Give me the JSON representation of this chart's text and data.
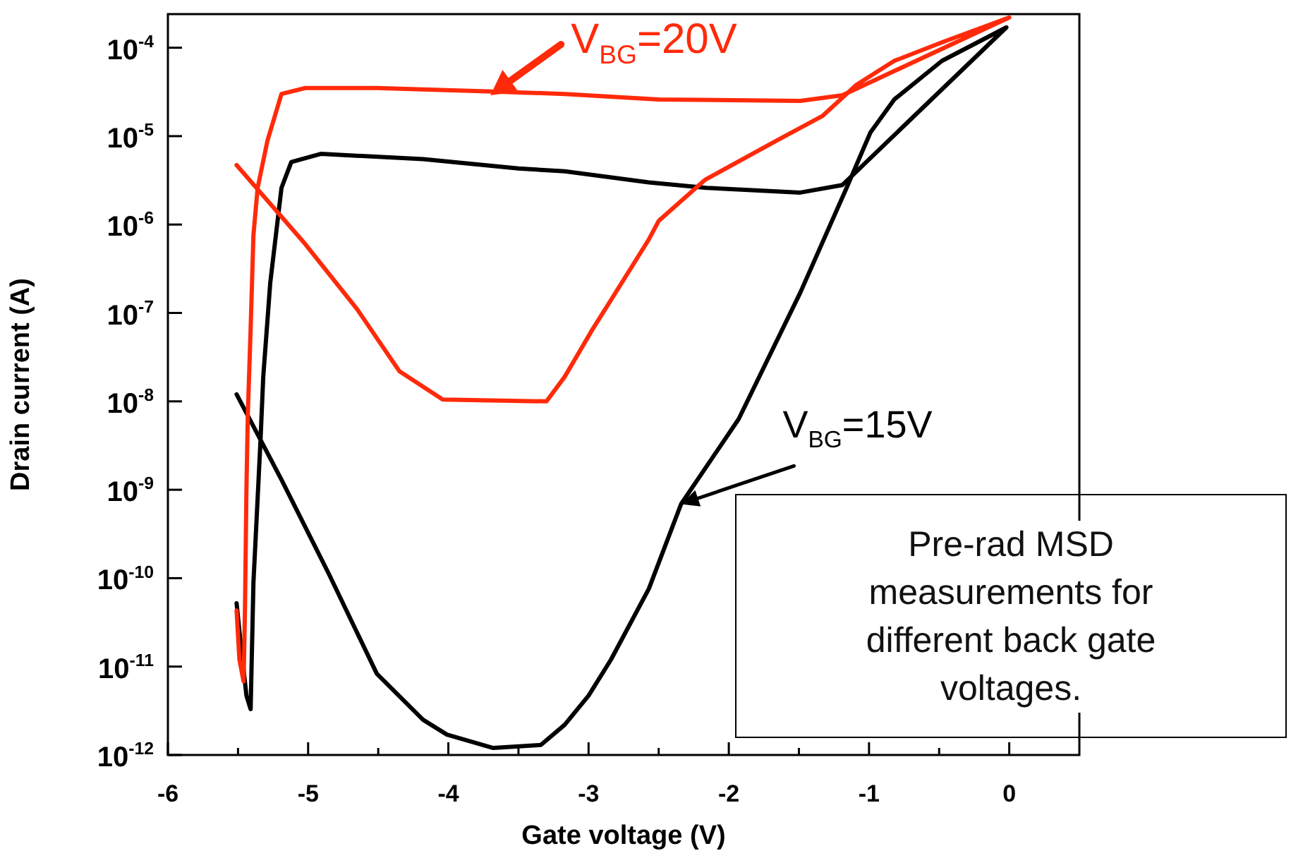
{
  "chart_data": {
    "type": "line",
    "xlabel": "Gate voltage (V)",
    "ylabel": "Drain current (A)",
    "log": "y",
    "grid": false,
    "marker": "none",
    "line_style": "solid",
    "xlim": [
      -6,
      0.5
    ],
    "xticks": [
      -6,
      {
        "value": -5.5,
        "label": null
      },
      -5,
      {
        "value": -4.5,
        "label": null
      },
      -4,
      {
        "value": -3.5,
        "label": null
      },
      -3,
      {
        "value": -2.5,
        "label": null
      },
      -2,
      {
        "value": -1.5,
        "label": null
      },
      -1,
      {
        "value": -0.5,
        "label": null
      },
      0
    ],
    "ylim": [
      1e-12,
      0.00024
    ],
    "yticks": [
      {
        "value": 1e-12,
        "label": "10$^{-12}$"
      },
      {
        "value": 1e-11,
        "label": "10$^{-11}$"
      },
      {
        "value": 1e-10,
        "label": "10$^{-10}$"
      },
      {
        "value": 1e-09,
        "label": "10$^{-9}$"
      },
      {
        "value": 1e-08,
        "label": "10$^{-8}$"
      },
      {
        "value": 1e-07,
        "label": "10$^{-7}$"
      },
      {
        "value": 1e-06,
        "label": "10$^{-6}$"
      },
      {
        "value": 1e-05,
        "label": "10$^{-5}$"
      },
      {
        "value": 0.0001,
        "label": "10$^{-4}$"
      }
    ],
    "series": [
      {
        "color": "#ff2a0a",
        "x": [
          -5.51,
          -5.02,
          -4.65,
          -4.35,
          -4.04,
          -3.3,
          -3.17,
          -2.97,
          -2.84,
          -2.57,
          -2.5,
          -2.17,
          -1.66,
          -1.33,
          -1.09,
          -0.82,
          -0.48,
          0,
          -1.19,
          -1.49,
          -2.5,
          -3.17,
          -3.68,
          -4.51,
          -5.02,
          -5.19,
          -5.29,
          -5.36,
          -5.39,
          -5.41,
          -5.43,
          -5.44,
          -5.45,
          -5.46,
          -5.49,
          -5.51
        ],
        "values": [
          4.7e-06,
          6e-07,
          1.1e-07,
          2.2e-08,
          1.05e-08,
          1e-08,
          1.9e-08,
          6.6e-08,
          1.4e-07,
          6.8e-07,
          1.1e-06,
          3.2e-06,
          8.9e-06,
          1.7e-05,
          3.8e-05,
          7.1e-05,
          0.000115,
          0.00022,
          2.9e-05,
          2.5e-05,
          2.6e-05,
          3e-05,
          3.2e-05,
          3.5e-05,
          3.5e-05,
          3e-05,
          8.9e-06,
          2.6e-06,
          7.6e-07,
          6.6e-08,
          7.2e-09,
          1e-09,
          4.7e-11,
          6.8e-12,
          1.2e-11,
          4.3e-11
        ]
      },
      {
        "color": "#000000",
        "x": [
          -5.51,
          -5.19,
          -4.85,
          -4.51,
          -4.18,
          -4.01,
          -3.68,
          -3.34,
          -3.17,
          -3.0,
          -2.84,
          -2.57,
          -2.34,
          -1.93,
          -1.49,
          -1.16,
          -0.99,
          -0.82,
          -0.48,
          -0.02,
          -1.19,
          -1.49,
          -2.16,
          -2.57,
          -3.17,
          -3.5,
          -4.18,
          -4.91,
          -5.12,
          -5.19,
          -5.27,
          -5.32,
          -5.34,
          -5.39,
          -5.41,
          -5.44,
          -5.49,
          -5.51
        ],
        "values": [
          1.2e-08,
          1.3e-09,
          1.1e-10,
          8.3e-12,
          2.5e-12,
          1.7e-12,
          1.2e-12,
          1.3e-12,
          2.2e-12,
          4.7e-12,
          1.2e-11,
          7.6e-11,
          6.9e-10,
          6.3e-09,
          1.7e-07,
          2.6e-06,
          1.1e-05,
          2.6e-05,
          7.1e-05,
          0.00017,
          2.8e-06,
          2.3e-06,
          2.6e-06,
          3e-06,
          4e-06,
          4.3e-06,
          5.5e-06,
          6.3e-06,
          5.1e-06,
          2.6e-06,
          2.2e-07,
          1.9e-08,
          3.5e-09,
          8.9e-11,
          3.3e-12,
          4.7e-12,
          2.5e-11,
          5.2e-11
        ]
      }
    ],
    "annotations": [
      {
        "text": "V$_{BG}$=20V",
        "x": -3.7,
        "y": 2.9e-05
      },
      {
        "text": "V$_{BG}$=15V",
        "x": -2.34,
        "y": 6.9e-10
      },
      "Pre-rad MSD measurements for different back gate voltages."
    ]
  }
}
